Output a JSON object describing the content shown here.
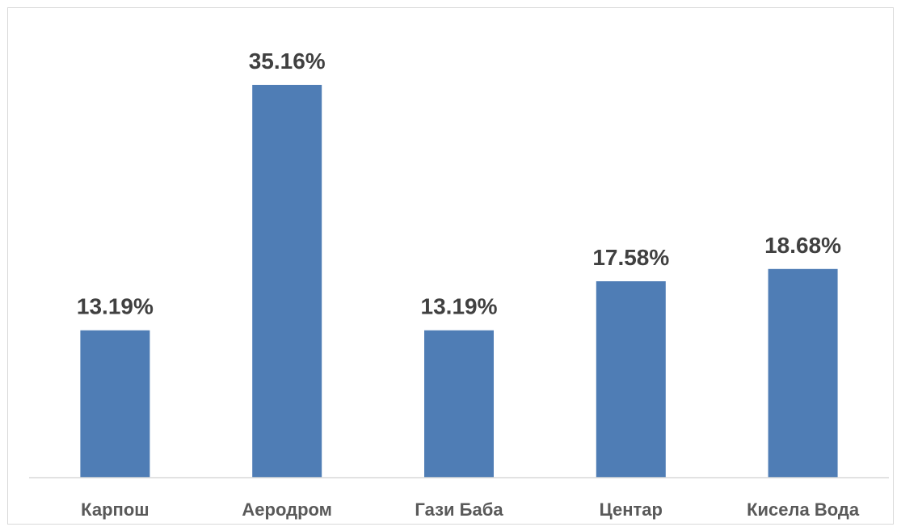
{
  "chart_data": {
    "type": "bar",
    "categories": [
      "Карпош",
      "Аеродром",
      "Гази Баба",
      "Центар",
      "Кисела Вода"
    ],
    "values": [
      13.19,
      35.16,
      13.19,
      17.58,
      18.68
    ],
    "data_labels": [
      "13.19%",
      "35.16%",
      "13.19%",
      "17.58%",
      "18.68%"
    ],
    "unit": "%",
    "ylim": [
      0,
      40
    ],
    "grid": false,
    "legend": "none",
    "title": "",
    "xlabel": "",
    "ylabel": "",
    "colors": {
      "bar": "#4f7db5",
      "axis": "#d9d9d9",
      "label": "#404040",
      "tick": "#595959"
    }
  }
}
